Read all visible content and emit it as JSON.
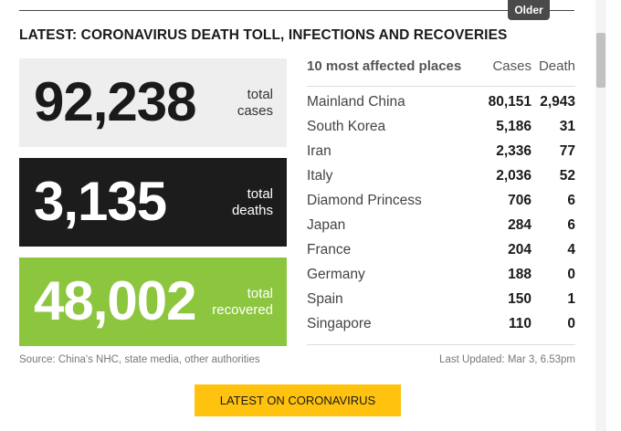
{
  "header": {
    "older_label": "Older",
    "headline": "LATEST: CORONAVIRUS DEATH TOLL, INFECTIONS AND RECOVERIES"
  },
  "stats": {
    "cases": {
      "value": "92,238",
      "label_line1": "total",
      "label_line2": "cases"
    },
    "deaths": {
      "value": "3,135",
      "label_line1": "total",
      "label_line2": "deaths"
    },
    "recovered": {
      "value": "48,002",
      "label_line1": "total",
      "label_line2": "recovered"
    }
  },
  "colors": {
    "cases_bg": "#eeeeee",
    "deaths_bg": "#1c1c1c",
    "recovered_bg": "#8cc63f",
    "button_bg": "#ffc20e"
  },
  "table": {
    "title": "10 most affected places",
    "col_cases": "Cases",
    "col_death": "Death",
    "rows": [
      {
        "place": "Mainland China",
        "cases": "80,151",
        "death": "2,943"
      },
      {
        "place": "South Korea",
        "cases": "5,186",
        "death": "31"
      },
      {
        "place": "Iran",
        "cases": "2,336",
        "death": "77"
      },
      {
        "place": "Italy",
        "cases": "2,036",
        "death": "52"
      },
      {
        "place": "Diamond Princess",
        "cases": "706",
        "death": "6"
      },
      {
        "place": "Japan",
        "cases": "284",
        "death": "6"
      },
      {
        "place": "France",
        "cases": "204",
        "death": "4"
      },
      {
        "place": "Germany",
        "cases": "188",
        "death": "0"
      },
      {
        "place": "Spain",
        "cases": "150",
        "death": "1"
      },
      {
        "place": "Singapore",
        "cases": "110",
        "death": "0"
      }
    ]
  },
  "footer": {
    "source": "Source: China's NHC, state media, other authorities",
    "last_updated": "Last Updated: Mar 3, 6.53pm",
    "cta_label": "LATEST ON CORONAVIRUS"
  }
}
